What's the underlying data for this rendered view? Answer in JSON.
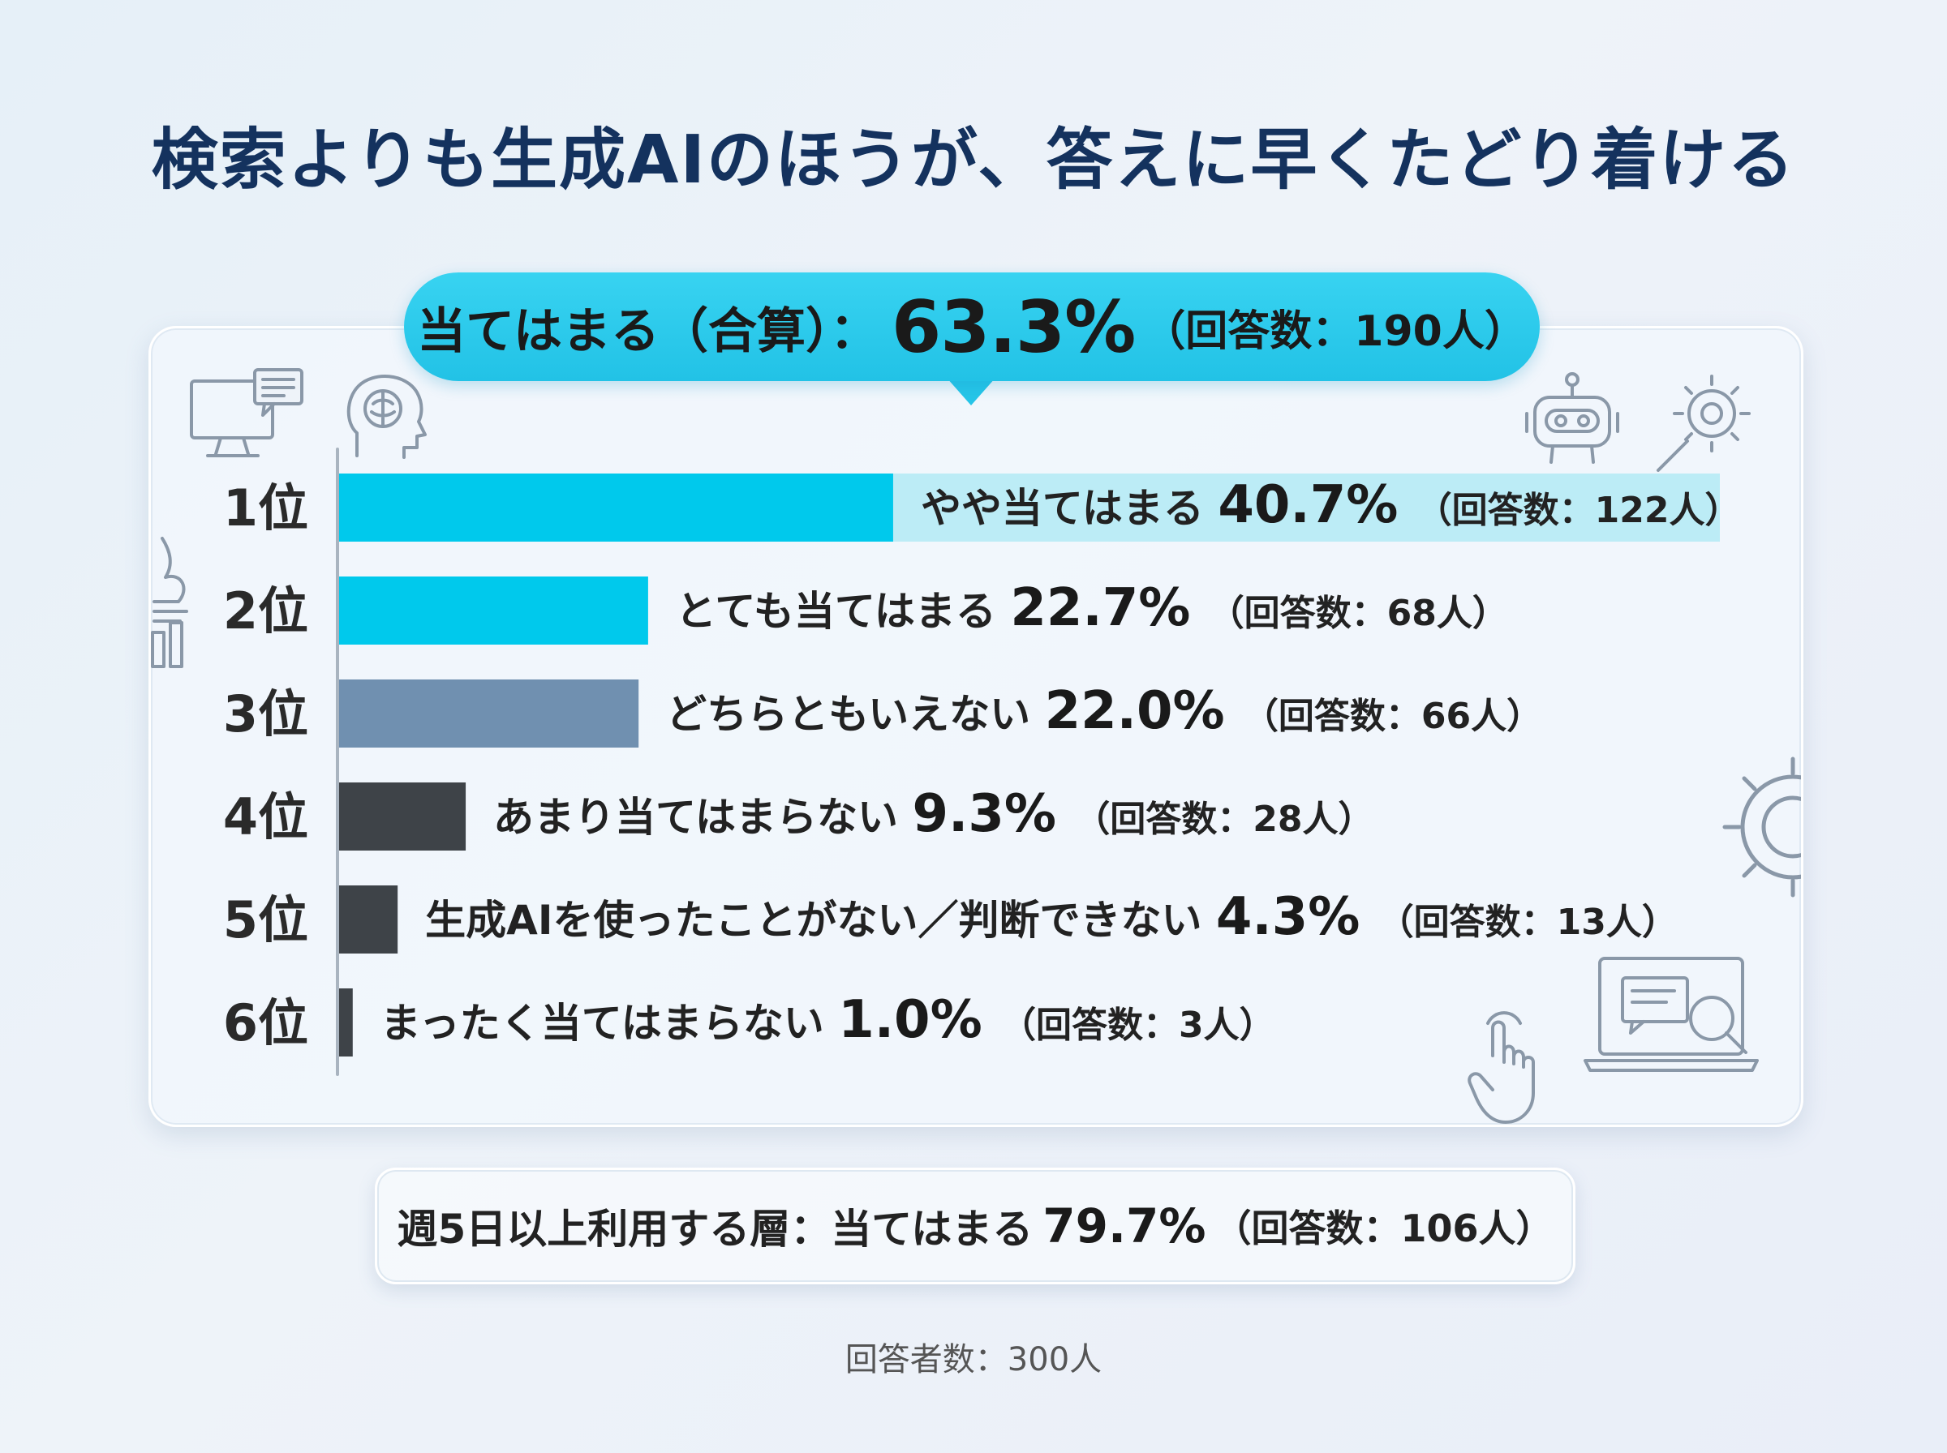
{
  "title": "検索よりも生成AIのほうが、答えに早くたどり着ける",
  "highlight": {
    "label": "当てはまる（合算）：",
    "value": "63.3%",
    "count": "（回答数：190人）"
  },
  "summary": {
    "label": "週5日以上利用する層：当てはまる",
    "value": "79.7%",
    "count": "（回答数：106人）"
  },
  "footnote": "回答者数：300人",
  "colors": {
    "cyan": "#00c9ec",
    "slate": "#7090b0",
    "dark": "#3e4348",
    "bubble": "#2ac8ea",
    "title": "#14325e"
  },
  "icons": [
    "monitor-chat-icon",
    "ai-head-icon",
    "chart-hand-icon",
    "robot-icon",
    "gear-magnifier-icon",
    "gear-icon",
    "laptop-search-icon",
    "pointer-hand-icon"
  ],
  "chart_data": {
    "type": "bar",
    "orientation": "horizontal",
    "xlim": [
      0,
      100
    ],
    "grid": false,
    "categories": [
      "1位",
      "2位",
      "3位",
      "4位",
      "5位",
      "6位"
    ],
    "labels": [
      "やや当てはまる",
      "とても当てはまる",
      "どちらともいえない",
      "あまり当てはまらない",
      "生成AIを使ったことがない／判断できない",
      "まったく当てはまらない"
    ],
    "values": [
      40.7,
      22.7,
      22.0,
      9.3,
      4.3,
      1.0
    ],
    "value_labels": [
      "40.7%",
      "22.7%",
      "22.0%",
      "9.3%",
      "4.3%",
      "1.0%"
    ],
    "counts": [
      "（回答数：122人）",
      "（回答数：68人）",
      "（回答数：66人）",
      "（回答数：28人）",
      "（回答数：13人）",
      "（回答数：3人）"
    ],
    "bar_colors": [
      "#00c9ec",
      "#00c9ec",
      "#7090b0",
      "#3e4348",
      "#3e4348",
      "#3e4348"
    ]
  }
}
